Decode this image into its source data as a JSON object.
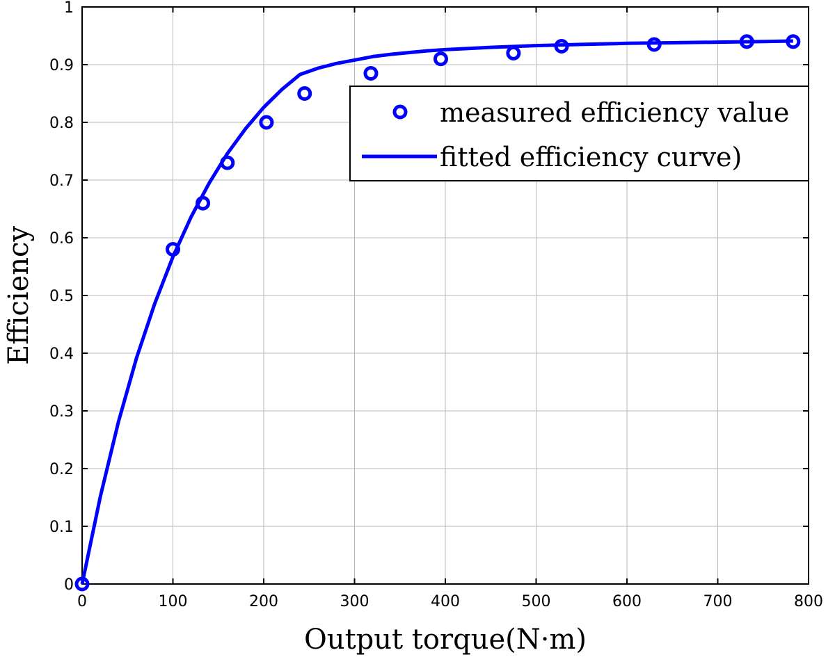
{
  "chart_data": {
    "type": "line",
    "xlabel": "Output torque(N·m)",
    "ylabel": "Efficiency",
    "xlim": [
      0,
      800
    ],
    "ylim": [
      0,
      1
    ],
    "x_ticks": [
      0,
      100,
      200,
      300,
      400,
      500,
      600,
      700,
      800
    ],
    "y_ticks": [
      0,
      0.1,
      0.2,
      0.3,
      0.4,
      0.5,
      0.6,
      0.7,
      0.8,
      0.9,
      1
    ],
    "x_tick_labels": [
      "0",
      "100",
      "200",
      "300",
      "400",
      "500",
      "600",
      "700",
      "800"
    ],
    "y_tick_labels": [
      "0",
      "0.1",
      "0.2",
      "0.3",
      "0.4",
      "0.5",
      "0.6",
      "0.7",
      "0.8",
      "0.9",
      "1"
    ],
    "grid": true,
    "legend_position": "top-right",
    "color": "#0000ff",
    "series": [
      {
        "name": "measured efficiency value",
        "type": "scatter",
        "marker": "circle",
        "x": [
          0,
          100,
          133,
          160,
          203,
          245,
          318,
          395,
          475,
          528,
          630,
          732,
          783
        ],
        "y": [
          0.0,
          0.58,
          0.66,
          0.73,
          0.8,
          0.85,
          0.885,
          0.91,
          0.92,
          0.932,
          0.935,
          0.94,
          0.94
        ]
      },
      {
        "name": "fitted efficiency curve)",
        "type": "line",
        "x": [
          0,
          20,
          40,
          60,
          80,
          100,
          120,
          140,
          160,
          180,
          200,
          220,
          240,
          260,
          280,
          300,
          320,
          340,
          360,
          380,
          400,
          450,
          500,
          550,
          600,
          650,
          700,
          750,
          783
        ],
        "y": [
          0.0,
          0.151,
          0.281,
          0.392,
          0.486,
          0.567,
          0.636,
          0.695,
          0.746,
          0.789,
          0.826,
          0.857,
          0.883,
          0.894,
          0.902,
          0.908,
          0.914,
          0.918,
          0.921,
          0.924,
          0.926,
          0.93,
          0.933,
          0.935,
          0.937,
          0.938,
          0.939,
          0.94,
          0.941
        ]
      }
    ]
  }
}
